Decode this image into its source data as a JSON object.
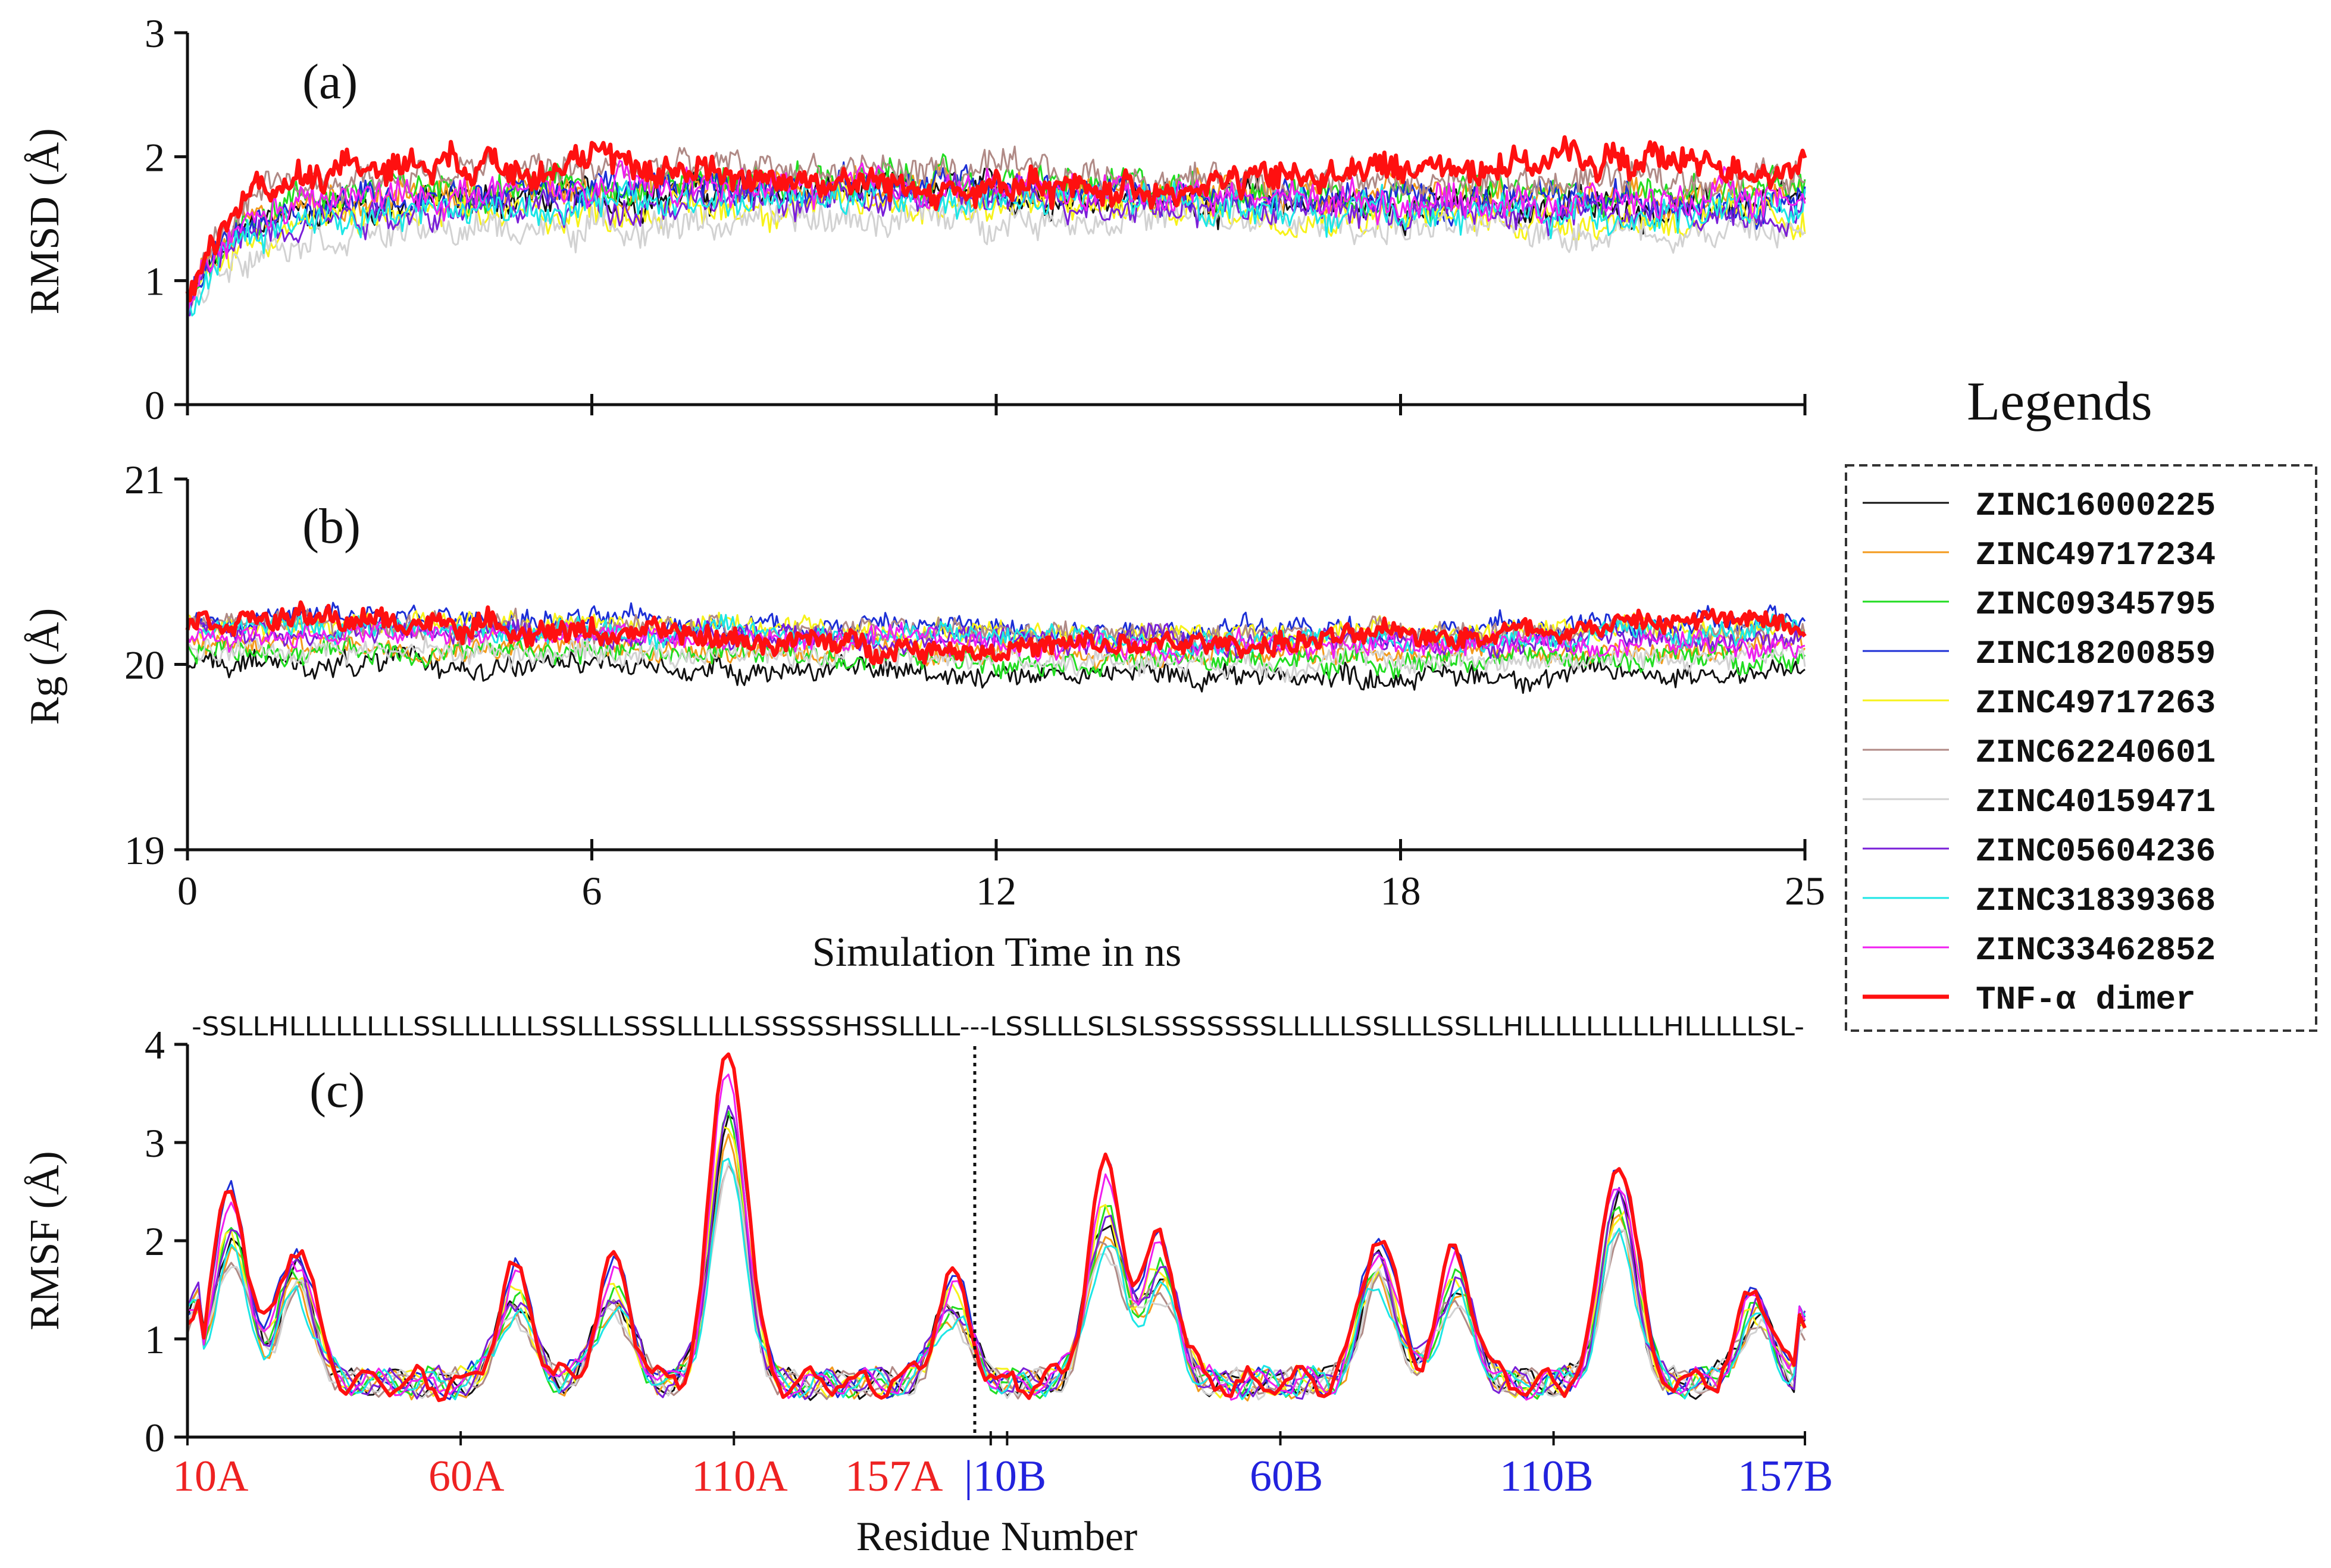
{
  "legend_title": "Legends",
  "colors": {
    "ZINC16000225": "#111111",
    "ZINC49717234": "#f39a1c",
    "ZINC09345795": "#22dd22",
    "ZINC18200859": "#1c2fd6",
    "ZINC49717263": "#f7f21a",
    "ZINC62240601": "#b08a86",
    "ZINC40159471": "#d2d2d2",
    "ZINC05604236": "#7a1fd8",
    "ZINC31839368": "#1ce6e6",
    "ZINC33462852": "#f01ef0",
    "TNF-α dimer": "#ff1010",
    "chain_A_label": "#ee2222",
    "chain_B_label": "#2222dd"
  },
  "chart_data": [
    {
      "type": "line",
      "panel_label": "(a)",
      "ylabel": "RMSD (Å)",
      "xlim": [
        0,
        24
      ],
      "ylim": [
        0,
        3
      ],
      "yticks": [
        "0",
        "1",
        "2",
        "3"
      ],
      "series_approx_mean": [
        {
          "name": "ZINC16000225",
          "start": 0.8,
          "plateau": 1.65
        },
        {
          "name": "ZINC49717234",
          "start": 0.8,
          "plateau": 1.7
        },
        {
          "name": "ZINC09345795",
          "start": 0.8,
          "plateau": 1.75
        },
        {
          "name": "ZINC18200859",
          "start": 0.8,
          "plateau": 1.7
        },
        {
          "name": "ZINC49717263",
          "start": 0.8,
          "plateau": 1.55
        },
        {
          "name": "ZINC62240601",
          "start": 0.8,
          "plateau": 1.85
        },
        {
          "name": "ZINC40159471",
          "start": 0.8,
          "plateau": 1.45
        },
        {
          "name": "ZINC05604236",
          "start": 0.8,
          "plateau": 1.6
        },
        {
          "name": "ZINC31839368",
          "start": 0.8,
          "plateau": 1.6
        },
        {
          "name": "ZINC33462852",
          "start": 0.8,
          "plateau": 1.7
        },
        {
          "name": "TNF-α dimer",
          "start": 0.8,
          "plateau": 1.85
        }
      ]
    },
    {
      "type": "line",
      "panel_label": "(b)",
      "ylabel": "Rg (Å)",
      "xlabel": "Simulation Time in ns",
      "xlim": [
        0,
        24
      ],
      "xticks": [
        "0",
        "6",
        "12",
        "18",
        "25"
      ],
      "ylim": [
        19,
        21
      ],
      "yticks": [
        "19",
        "20",
        "21"
      ],
      "series_approx_mean": [
        {
          "name": "ZINC16000225",
          "value": 19.97
        },
        {
          "name": "ZINC49717234",
          "value": 20.08
        },
        {
          "name": "ZINC09345795",
          "value": 20.05
        },
        {
          "name": "ZINC18200859",
          "value": 20.22
        },
        {
          "name": "ZINC49717263",
          "value": 20.2
        },
        {
          "name": "ZINC62240601",
          "value": 20.18
        },
        {
          "name": "ZINC40159471",
          "value": 20.05
        },
        {
          "name": "ZINC05604236",
          "value": 20.15
        },
        {
          "name": "ZINC31839368",
          "value": 20.17
        },
        {
          "name": "ZINC33462852",
          "value": 20.13
        },
        {
          "name": "TNF-α dimer",
          "value": 20.17
        }
      ]
    },
    {
      "type": "line",
      "panel_label": "(c)",
      "ylabel": "RMSF (Å)",
      "xlabel": "Residue Number",
      "ylim": [
        0,
        4
      ],
      "yticks": [
        "0",
        "1",
        "2",
        "3",
        "4"
      ],
      "secondary_structure": "-SSLLHLLLLLLLLSSLLLLLLSSLLLSSSLLLLLSSSSSHSSLLLL---LSSLLLSLSLSSSSSSSLLLLLSSLLLSSLLHLLLLLLLLLHLLLLLSL-",
      "residue_ticks_A": [
        "10A",
        "60A",
        "110A",
        "157A"
      ],
      "residue_ticks_B": [
        "|10B",
        "60B",
        "110B",
        "157B"
      ],
      "residue_index_range": [
        0,
        296
      ],
      "chain_break_index": 147,
      "rmsf_peaks": [
        {
          "index": 8,
          "value": 2.1
        },
        {
          "index": 20,
          "value": 1.7
        },
        {
          "index": 60,
          "value": 1.45
        },
        {
          "index": 78,
          "value": 1.5
        },
        {
          "index": 99,
          "value": 3.3
        },
        {
          "index": 140,
          "value": 1.4
        },
        {
          "index": 168,
          "value": 2.3
        },
        {
          "index": 178,
          "value": 1.7
        },
        {
          "index": 218,
          "value": 1.8
        },
        {
          "index": 232,
          "value": 1.6
        },
        {
          "index": 262,
          "value": 2.4
        },
        {
          "index": 287,
          "value": 1.3
        }
      ]
    }
  ]
}
